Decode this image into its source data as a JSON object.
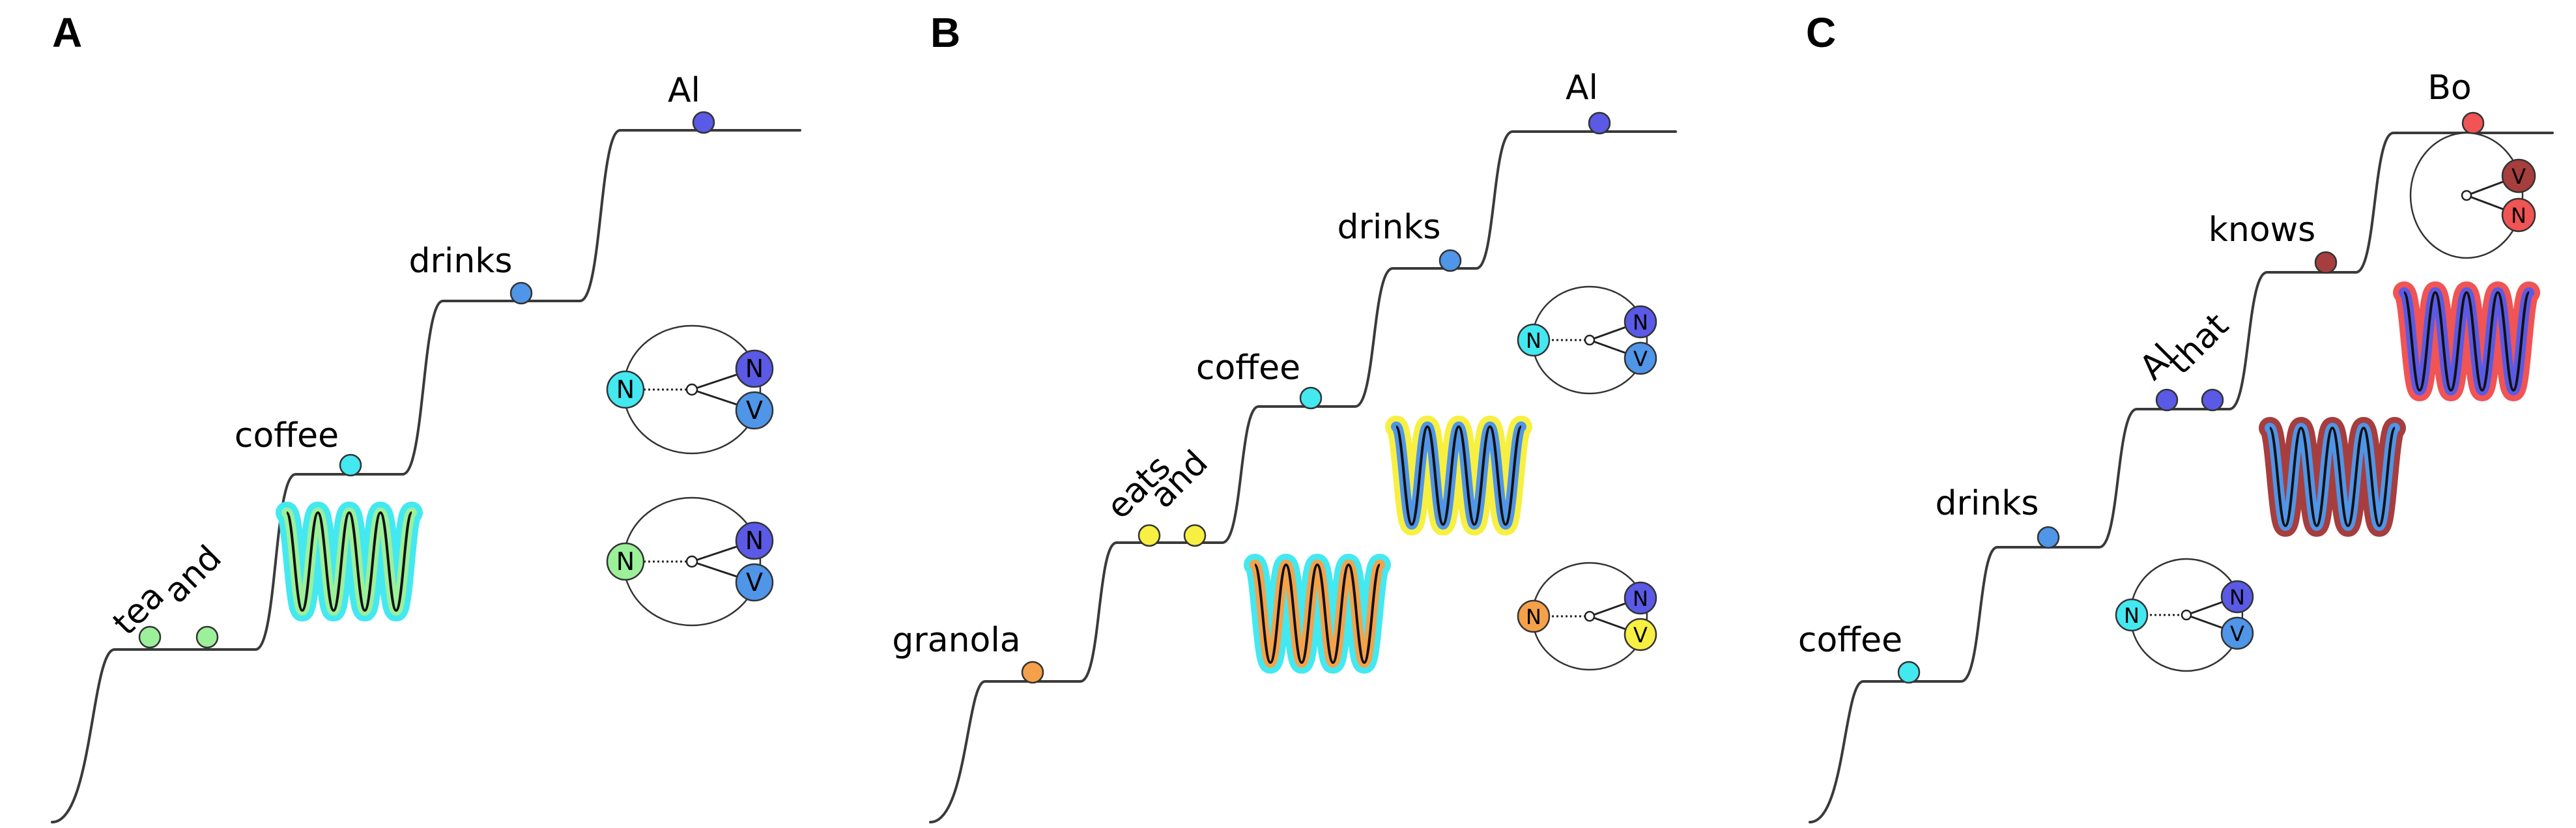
{
  "colors": {
    "cyan": "#44e8f0",
    "light_green": "#9cf09a",
    "blue": "#4f95e8",
    "indigo": "#5a5ae6",
    "orange": "#f5a14a",
    "yellow": "#f7f042",
    "dark_red": "#a63e3e",
    "red": "#f05454",
    "line": "#3a3a3a"
  },
  "panels": [
    {
      "letter": "A",
      "words": [
        "tea",
        "and",
        "coffee",
        "drinks",
        "Al"
      ],
      "nodes": [
        [
          "N",
          "N",
          "V"
        ],
        [
          "N",
          "N",
          "V"
        ]
      ]
    },
    {
      "letter": "B",
      "words": [
        "granola",
        "eats",
        "and",
        "coffee",
        "drinks",
        "Al"
      ],
      "nodes": [
        [
          "N",
          "N",
          "V"
        ],
        [
          "N",
          "N",
          "V"
        ]
      ]
    },
    {
      "letter": "C",
      "words": [
        "coffee",
        "drinks",
        "Al",
        "that",
        "knows",
        "Bo"
      ],
      "nodes": [
        [
          "N",
          "N",
          "V"
        ],
        [
          "V",
          "N"
        ]
      ]
    }
  ]
}
